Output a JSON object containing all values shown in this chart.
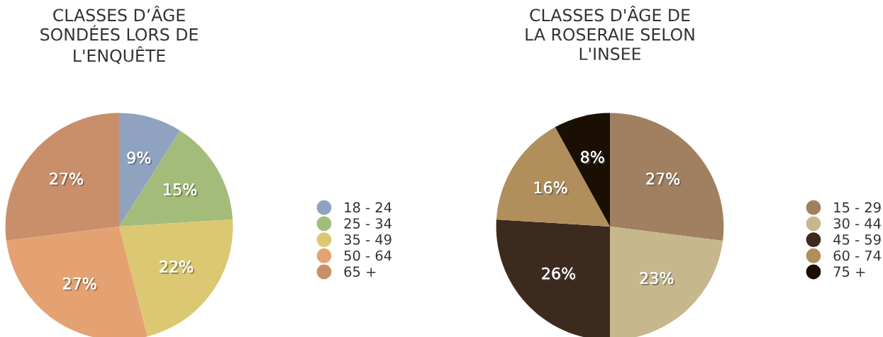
{
  "chart_data": [
    {
      "type": "pie",
      "title": "CLASSES D’ÂGE\nSONDÉES LORS DE\nL'ENQUÊTE",
      "categories": [
        "18 - 24",
        "25 - 34",
        "35 - 49",
        "50 - 64",
        "65 +"
      ],
      "values": [
        9,
        15,
        22,
        27,
        27
      ],
      "colors": [
        "#8fa3c0",
        "#a3bc7a",
        "#dcc872",
        "#e4a272",
        "#c98e6a"
      ],
      "value_labels": [
        "9%",
        "15%",
        "22%",
        "27%",
        "27%"
      ],
      "legend": "right"
    },
    {
      "type": "pie",
      "title": "CLASSES D'ÂGE DE\nLA ROSERAIE SELON\nL'INSEE",
      "categories": [
        "15 - 29",
        "30 - 44",
        "45 - 59",
        "60 - 74",
        "75 +"
      ],
      "values": [
        27,
        23,
        26,
        16,
        8
      ],
      "colors": [
        "#a08060",
        "#c6b78c",
        "#3d2a1f",
        "#b08f5c",
        "#1b0f04"
      ],
      "value_labels": [
        "27%",
        "23%",
        "26%",
        "16%",
        "8%"
      ],
      "legend": "right"
    }
  ]
}
